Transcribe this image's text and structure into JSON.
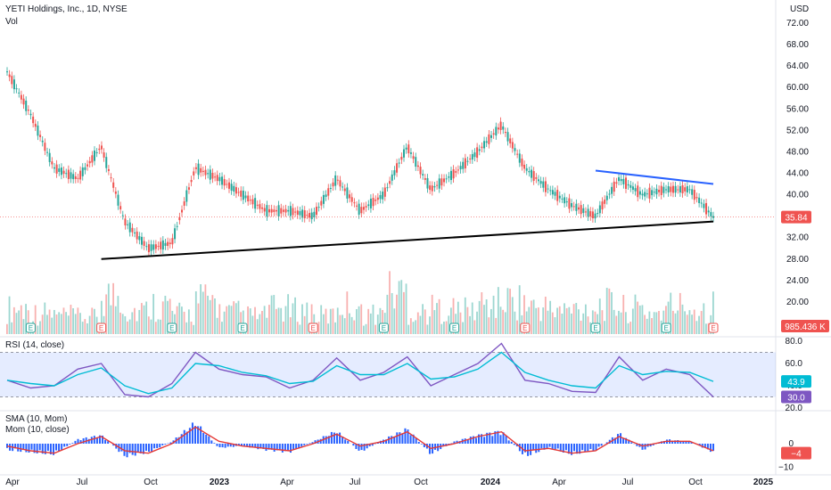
{
  "header": {
    "title": "YETI Holdings, Inc., 1D, NYSE",
    "vol_label": "Vol",
    "currency": "USD"
  },
  "price_badge": "35.84",
  "volume_badge": "985.436 K",
  "rsi_label": "RSI (14, close)",
  "rsi_badges": [
    "43.9",
    "30.0"
  ],
  "sma_label": "SMA (10, Mom)",
  "mom_label": "Mom (10, close)",
  "mom_badge": "−4",
  "colors": {
    "up": "#26a69a",
    "down": "#ef5350",
    "rsi_line": "#7e57c2",
    "rsi_ma": "#00bcd4",
    "trend_support": "#000000",
    "trend_resistance": "#2962ff",
    "sma": "#e53935",
    "mom": "#2962ff"
  },
  "chart_data": [
    {
      "type": "line",
      "name": "price",
      "x_axis_labels": [
        "Apr",
        "Jul",
        "Oct",
        "2023",
        "Apr",
        "Jul",
        "Oct",
        "2024",
        "Apr",
        "Jul",
        "Oct",
        "2025"
      ],
      "y_ticks": [
        "72.00",
        "68.00",
        "64.00",
        "60.00",
        "56.00",
        "52.00",
        "48.00",
        "44.00",
        "40.00",
        "36.00",
        "32.00",
        "28.00",
        "24.00",
        "20.00",
        "16.00"
      ],
      "ylim": [
        14,
        73
      ],
      "x": [
        "2022-04",
        "2022-05",
        "2022-06",
        "2022-07",
        "2022-08",
        "2022-09",
        "2022-10",
        "2022-11",
        "2022-12",
        "2023-01",
        "2023-02",
        "2023-03",
        "2023-04",
        "2023-05",
        "2023-06",
        "2023-07",
        "2023-08",
        "2023-09",
        "2023-10",
        "2023-11",
        "2023-12",
        "2024-01",
        "2024-02",
        "2024-03",
        "2024-04",
        "2024-05",
        "2024-06",
        "2024-07",
        "2024-08",
        "2024-09",
        "2024-10"
      ],
      "values": [
        63,
        55,
        45,
        43,
        49,
        35,
        30,
        31,
        45,
        43,
        40,
        37,
        37,
        36,
        43,
        37,
        40,
        49,
        41,
        44,
        48,
        53,
        45,
        41,
        38,
        36,
        43,
        40,
        41,
        41,
        35.84
      ],
      "last_value": 35.84,
      "trendlines": [
        {
          "name": "support",
          "from": [
            "2022-08",
            28
          ],
          "to": [
            "2024-10",
            35
          ]
        },
        {
          "name": "resistance",
          "from": [
            "2024-05",
            44.5
          ],
          "to": [
            "2024-10",
            42
          ]
        }
      ],
      "earnings_markers": [
        "2022-05",
        "2022-08",
        "2022-11",
        "2023-02",
        "2023-05",
        "2023-08",
        "2023-11",
        "2024-02",
        "2024-05",
        "2024-08",
        "2024-10"
      ],
      "volume": [
        30,
        25,
        22,
        20,
        45,
        28,
        35,
        24,
        40,
        26,
        22,
        30,
        28,
        22,
        34,
        24,
        50,
        26,
        30,
        28,
        36,
        40,
        32,
        28,
        30,
        35,
        30,
        26,
        34,
        30,
        35
      ],
      "volume_last": "985.436 K"
    },
    {
      "type": "line",
      "name": "RSI (14, close)",
      "y_ticks": [
        "80.0",
        "60.0",
        "40.0",
        "20.0"
      ],
      "ylim": [
        20,
        80
      ],
      "band": [
        30,
        70
      ],
      "values": [
        45,
        38,
        40,
        55,
        60,
        32,
        30,
        42,
        70,
        55,
        50,
        48,
        38,
        45,
        65,
        45,
        52,
        66,
        40,
        50,
        60,
        78,
        45,
        42,
        35,
        34,
        66,
        45,
        55,
        50,
        30
      ],
      "ma_values": [
        45,
        42,
        40,
        50,
        56,
        40,
        33,
        38,
        60,
        58,
        52,
        49,
        42,
        44,
        58,
        50,
        50,
        60,
        46,
        48,
        55,
        70,
        52,
        45,
        40,
        38,
        58,
        50,
        53,
        52,
        43.9
      ],
      "last_values": [
        43.9,
        30.0
      ]
    },
    {
      "type": "bar",
      "name": "Mom (10, close)",
      "y_ticks": [
        "0",
        "−10"
      ],
      "ylim": [
        -12,
        12
      ],
      "values": [
        -3,
        -4,
        -5,
        2,
        4,
        -6,
        -4,
        1,
        10,
        -2,
        -1,
        -3,
        -4,
        1,
        6,
        -4,
        2,
        7,
        -5,
        1,
        4,
        6,
        -6,
        -2,
        -5,
        -3,
        5,
        -3,
        2,
        1,
        -4
      ],
      "sma_values": [
        -1,
        -3,
        -4,
        0,
        3,
        -3,
        -4,
        0,
        7,
        1,
        -1,
        -2,
        -3,
        0,
        4,
        -1,
        1,
        5,
        -2,
        0,
        3,
        5,
        -3,
        -2,
        -4,
        -3,
        3,
        -1,
        1,
        1,
        -3
      ],
      "last_value": -4
    }
  ]
}
